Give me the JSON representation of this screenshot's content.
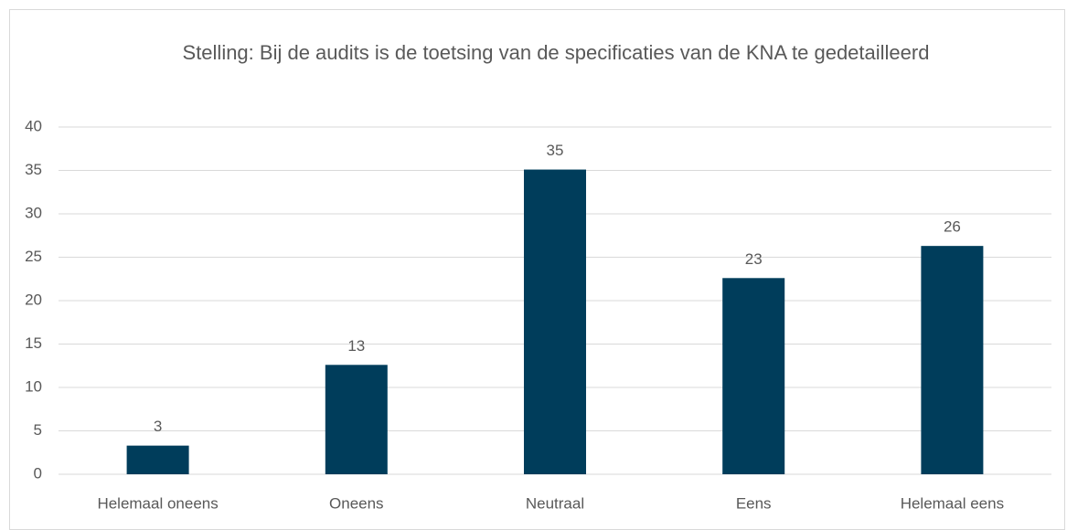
{
  "chart_data": {
    "type": "bar",
    "title": "Stelling: Bij de audits is de toetsing van de specificaties van de KNA te gedetailleerd",
    "categories": [
      "Helemaal oneens",
      "Oneens",
      "Neutraal",
      "Eens",
      "Helemaal eens"
    ],
    "values": [
      3.3,
      12.6,
      35.1,
      22.6,
      26.3
    ],
    "value_labels": [
      "3",
      "13",
      "35",
      "23",
      "26"
    ],
    "color": "#003d5b",
    "ylim": [
      0,
      40
    ],
    "yticks": [
      0,
      5,
      10,
      15,
      20,
      25,
      30,
      35,
      40
    ],
    "grid": true
  }
}
